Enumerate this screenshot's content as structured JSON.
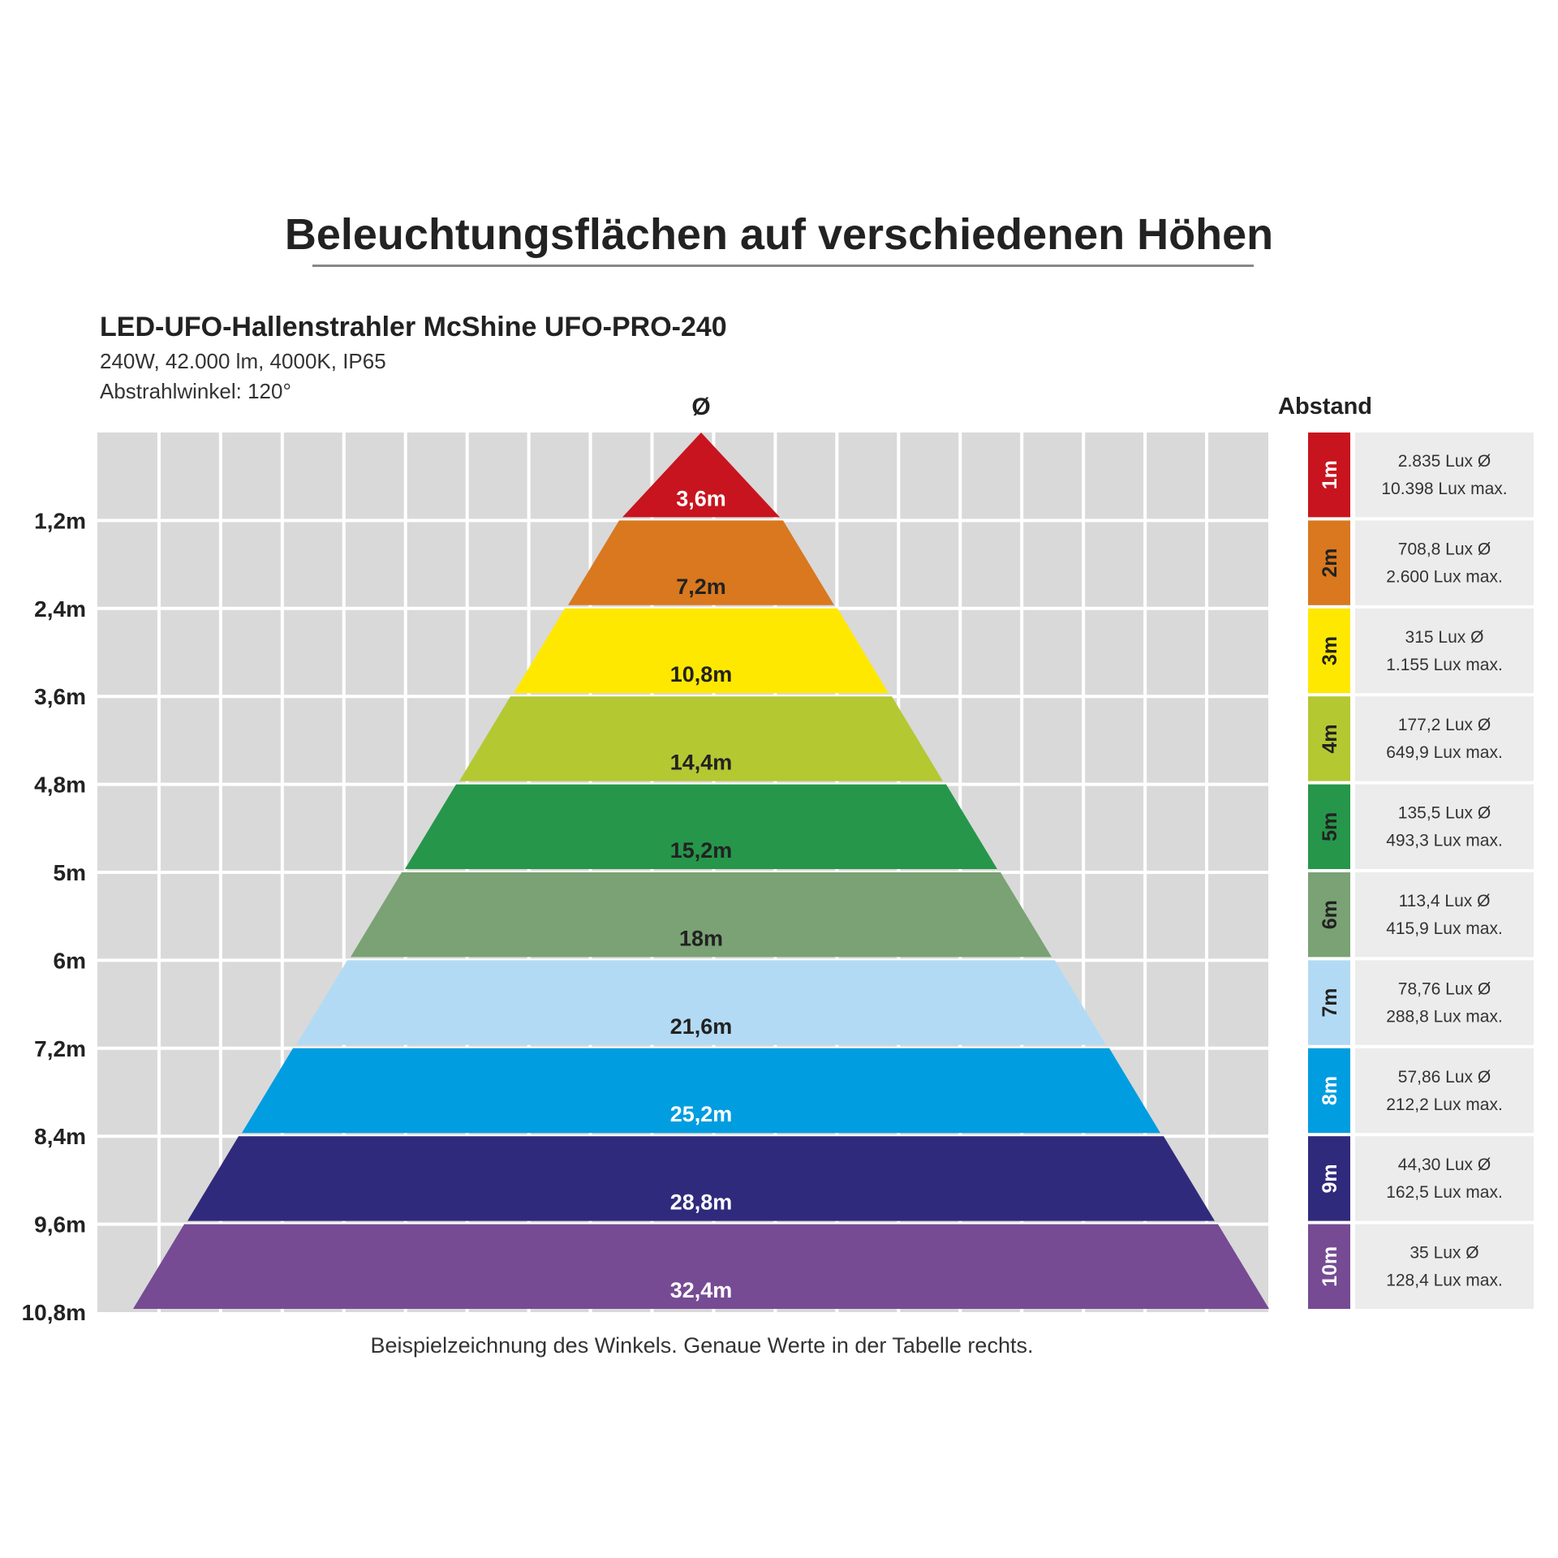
{
  "title": "Beleuchtungsflächen auf verschiedenen Höhen",
  "product": {
    "name": "LED-UFO-Hallenstrahler McShine UFO-PRO-240",
    "specs": "240W, 42.000 lm, 4000K, IP65",
    "angle": "Abstrahlwinkel: 120°"
  },
  "diameter_header": "Ø",
  "distance_header": "Abstand",
  "footnote": "Beispielzeichnung des Winkels. Genaue Werte in der Tabelle rechts.",
  "chart_data": {
    "type": "table",
    "y_axis_labels": [
      "1,2m",
      "2,4m",
      "3,6m",
      "4,8m",
      "5m",
      "6m",
      "7,2m",
      "8,4m",
      "9,6m",
      "10,8m"
    ],
    "pyramid_levels": [
      {
        "diameter_label": "3,6m",
        "color": "#C8141E",
        "text_color": "#ffffff"
      },
      {
        "diameter_label": "7,2m",
        "color": "#D9781E",
        "text_color": "#222222"
      },
      {
        "diameter_label": "10,8m",
        "color": "#FFE800",
        "text_color": "#222222"
      },
      {
        "diameter_label": "14,4m",
        "color": "#B4C832",
        "text_color": "#222222"
      },
      {
        "diameter_label": "15,2m",
        "color": "#26964A",
        "text_color": "#222222"
      },
      {
        "diameter_label": "18m",
        "color": "#7AA274",
        "text_color": "#222222"
      },
      {
        "diameter_label": "21,6m",
        "color": "#B3DAF4",
        "text_color": "#222222"
      },
      {
        "diameter_label": "25,2m",
        "color": "#009DE0",
        "text_color": "#ffffff"
      },
      {
        "diameter_label": "28,8m",
        "color": "#302A7C",
        "text_color": "#ffffff"
      },
      {
        "diameter_label": "32,4m",
        "color": "#764B93",
        "text_color": "#ffffff"
      }
    ],
    "distance_rows": [
      {
        "distance": "1m",
        "lux_avg": "2.835 Lux Ø",
        "lux_max": "10.398 Lux max.",
        "color": "#C8141E",
        "text_color": "#ffffff"
      },
      {
        "distance": "2m",
        "lux_avg": "708,8 Lux Ø",
        "lux_max": "2.600 Lux max.",
        "color": "#D9781E",
        "text_color": "#222222"
      },
      {
        "distance": "3m",
        "lux_avg": "315 Lux Ø",
        "lux_max": "1.155 Lux max.",
        "color": "#FFE800",
        "text_color": "#222222"
      },
      {
        "distance": "4m",
        "lux_avg": "177,2 Lux Ø",
        "lux_max": "649,9 Lux max.",
        "color": "#B4C832",
        "text_color": "#222222"
      },
      {
        "distance": "5m",
        "lux_avg": "135,5 Lux Ø",
        "lux_max": "493,3 Lux max.",
        "color": "#26964A",
        "text_color": "#222222"
      },
      {
        "distance": "6m",
        "lux_avg": "113,4 Lux Ø",
        "lux_max": "415,9 Lux max.",
        "color": "#7AA274",
        "text_color": "#222222"
      },
      {
        "distance": "7m",
        "lux_avg": "78,76 Lux Ø",
        "lux_max": "288,8 Lux max.",
        "color": "#B3DAF4",
        "text_color": "#222222"
      },
      {
        "distance": "8m",
        "lux_avg": "57,86 Lux Ø",
        "lux_max": "212,2 Lux max.",
        "color": "#009DE0",
        "text_color": "#ffffff"
      },
      {
        "distance": "9m",
        "lux_avg": "44,30 Lux Ø",
        "lux_max": "162,5 Lux max.",
        "color": "#302A7C",
        "text_color": "#ffffff"
      },
      {
        "distance": "10m",
        "lux_avg": "35 Lux Ø",
        "lux_max": "128,4 Lux max.",
        "color": "#764B93",
        "text_color": "#ffffff"
      }
    ]
  }
}
